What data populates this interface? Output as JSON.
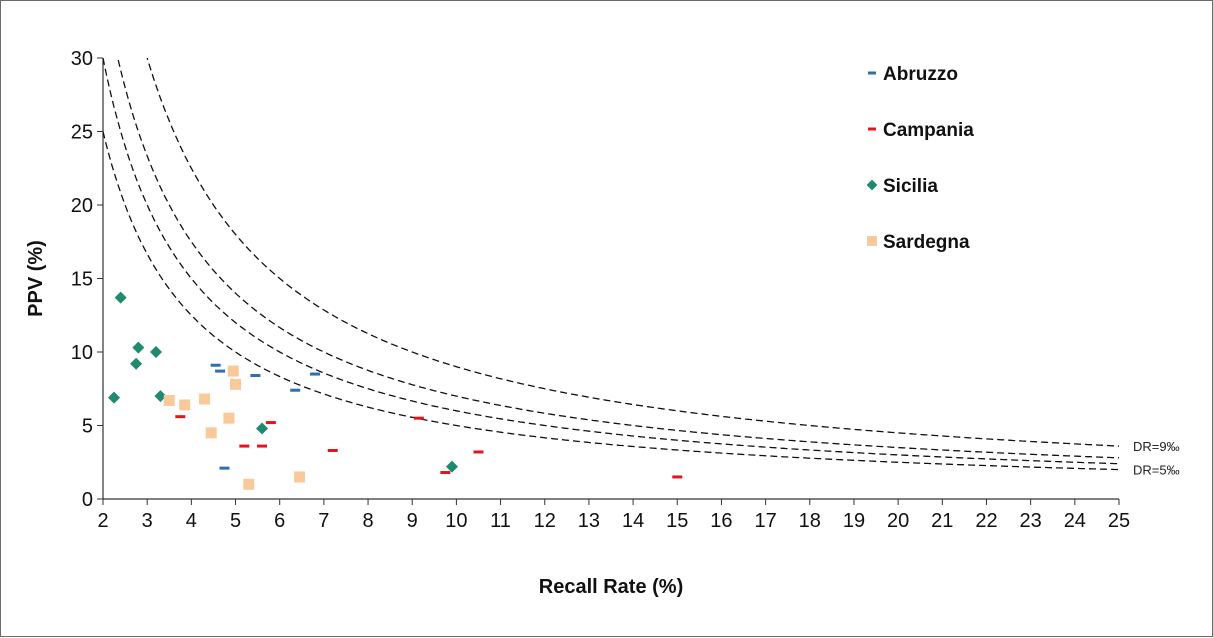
{
  "chart_data": {
    "type": "scatter",
    "title": "",
    "xlabel": "Recall Rate (%)",
    "ylabel": "PPV (%)",
    "xlim": [
      2,
      25
    ],
    "ylim": [
      0,
      30
    ],
    "x_ticks": [
      2,
      3,
      4,
      5,
      6,
      7,
      8,
      9,
      10,
      11,
      12,
      13,
      14,
      15,
      16,
      17,
      18,
      19,
      20,
      21,
      22,
      23,
      24,
      25
    ],
    "y_ticks": [
      0,
      5,
      10,
      15,
      20,
      25,
      30
    ],
    "grid": false,
    "legend": {
      "placement": "top-right"
    },
    "series": [
      {
        "name": "Abruzzo",
        "marker": "dash",
        "color": "#2e6fb0",
        "points": [
          [
            4.55,
            9.1
          ],
          [
            4.65,
            8.7
          ],
          [
            4.75,
            2.1
          ],
          [
            5.45,
            8.4
          ],
          [
            6.35,
            7.4
          ],
          [
            6.8,
            8.5
          ]
        ]
      },
      {
        "name": "Campania",
        "marker": "dash",
        "color": "#e0161f",
        "points": [
          [
            3.75,
            5.6
          ],
          [
            5.2,
            3.6
          ],
          [
            5.6,
            3.6
          ],
          [
            5.8,
            5.2
          ],
          [
            7.2,
            3.3
          ],
          [
            9.15,
            5.5
          ],
          [
            9.75,
            1.8
          ],
          [
            10.5,
            3.2
          ],
          [
            15.0,
            1.5
          ]
        ]
      },
      {
        "name": "Sicilia",
        "marker": "diamond",
        "color": "#1f8a6e",
        "points": [
          [
            2.25,
            6.9
          ],
          [
            2.4,
            13.7
          ],
          [
            2.75,
            9.2
          ],
          [
            2.8,
            10.3
          ],
          [
            3.2,
            10.0
          ],
          [
            3.3,
            7.0
          ],
          [
            5.6,
            4.8
          ],
          [
            9.9,
            2.2
          ]
        ]
      },
      {
        "name": "Sardegna",
        "marker": "square",
        "color": "#f9c99a",
        "points": [
          [
            3.5,
            6.7
          ],
          [
            3.85,
            6.4
          ],
          [
            4.3,
            6.8
          ],
          [
            4.45,
            4.5
          ],
          [
            4.85,
            5.5
          ],
          [
            4.95,
            8.7
          ],
          [
            5.0,
            7.8
          ],
          [
            5.3,
            1.0
          ],
          [
            6.45,
            1.5
          ]
        ]
      }
    ],
    "reference_curves": [
      {
        "detection_rate_permille": 5,
        "label": "DR=5‰"
      },
      {
        "detection_rate_permille": 6,
        "label": ""
      },
      {
        "detection_rate_permille": 7,
        "label": ""
      },
      {
        "detection_rate_permille": 9,
        "label": "DR=9‰"
      }
    ],
    "reference_line_color": "#111111"
  }
}
